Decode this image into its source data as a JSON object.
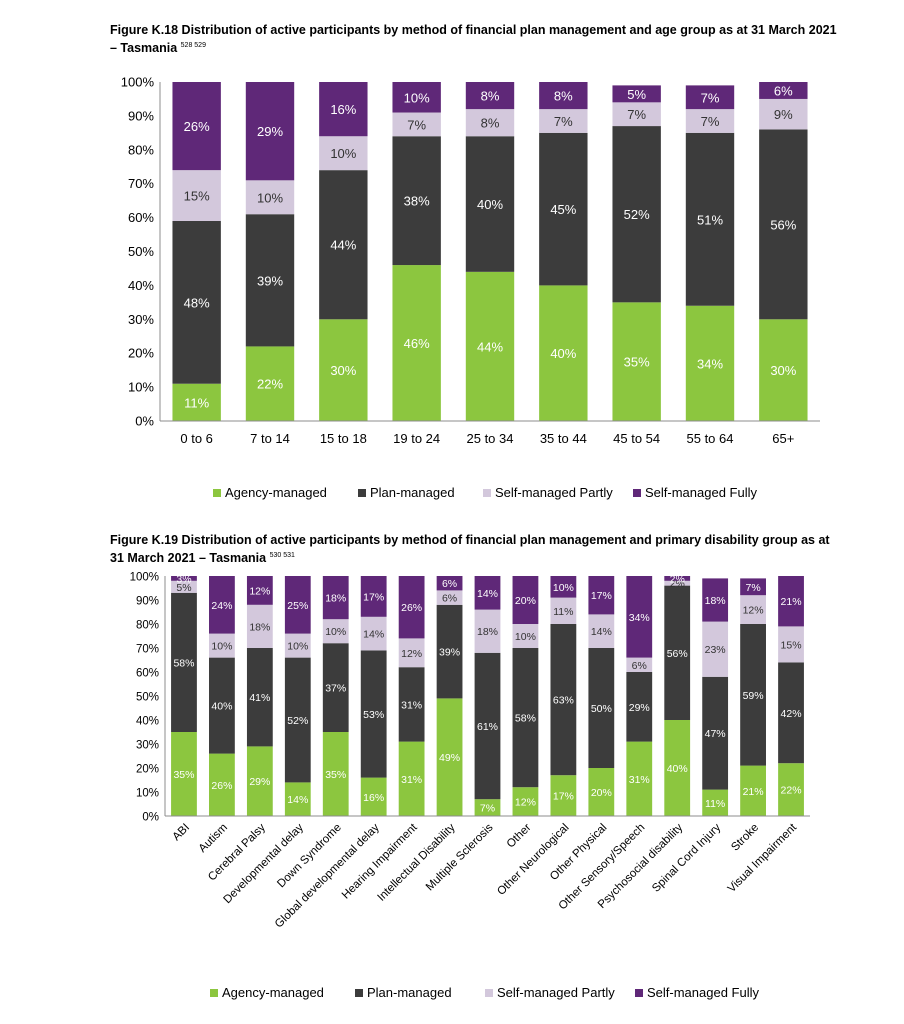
{
  "figures": [
    {
      "title": "Figure K.18 Distribution of active participants by method of financial plan management and age group as at 31 March 2021 – Tasmania",
      "footnotes": "528 529"
    },
    {
      "title": "Figure K.19 Distribution of active participants by method of financial plan management and primary disability group as at 31 March 2021 – Tasmania",
      "footnotes": "530 531"
    }
  ],
  "colors": {
    "Agency-managed": "#8cc63f",
    "Plan-managed": "#3c3c3c",
    "Self-managed Partly": "#d3c8dc",
    "Self-managed Fully": "#5f2878"
  },
  "chart_data": [
    {
      "type": "bar",
      "stacked": true,
      "ylim": [
        0,
        100
      ],
      "y_ticks": [
        "0%",
        "10%",
        "20%",
        "30%",
        "40%",
        "50%",
        "60%",
        "70%",
        "80%",
        "90%",
        "100%"
      ],
      "legend_position": "bottom",
      "grid": false,
      "categories": [
        "0 to 6",
        "7 to 14",
        "15 to 18",
        "19 to 24",
        "25 to 34",
        "35 to 44",
        "45 to 54",
        "55 to 64",
        "65+"
      ],
      "series": [
        {
          "name": "Agency-managed",
          "values": [
            11,
            22,
            30,
            46,
            44,
            40,
            35,
            34,
            30
          ],
          "labels": [
            "11%",
            "22%",
            "30%",
            "46%",
            "44%",
            "40%",
            "35%",
            "34%",
            "30%"
          ]
        },
        {
          "name": "Plan-managed",
          "values": [
            48,
            39,
            44,
            38,
            40,
            45,
            52,
            51,
            56
          ],
          "labels": [
            "48%",
            "39%",
            "44%",
            "38%",
            "40%",
            "45%",
            "52%",
            "51%",
            "56%"
          ]
        },
        {
          "name": "Self-managed Partly",
          "values": [
            15,
            10,
            10,
            7,
            8,
            7,
            7,
            7,
            9
          ],
          "labels": [
            "15%",
            "10%",
            "10%",
            "7%",
            "8%",
            "7%",
            "7%",
            "7%",
            "9%"
          ]
        },
        {
          "name": "Self-managed Fully",
          "values": [
            26,
            29,
            16,
            10,
            8,
            8,
            5,
            7,
            6
          ],
          "labels": [
            "26%",
            "29%",
            "16%",
            "10%",
            "8%",
            "8%",
            "5%",
            "7%",
            "6%"
          ]
        }
      ]
    },
    {
      "type": "bar",
      "stacked": true,
      "ylim": [
        0,
        100
      ],
      "y_ticks": [
        "0%",
        "10%",
        "20%",
        "30%",
        "40%",
        "50%",
        "60%",
        "70%",
        "80%",
        "90%",
        "100%"
      ],
      "legend_position": "bottom",
      "grid": false,
      "categories": [
        "ABI",
        "Autism",
        "Cerebral Palsy",
        "Developmental delay",
        "Down Syndrome",
        "Global developmental delay",
        "Hearing Impairment",
        "Intellectual Disability",
        "Multiple Sclerosis",
        "Other",
        "Other Neurological",
        "Other Physical",
        "Other Sensory/Speech",
        "Psychosocial disability",
        "Spinal Cord Injury",
        "Stroke",
        "Visual Impairment"
      ],
      "series": [
        {
          "name": "Agency-managed",
          "values": [
            35,
            26,
            29,
            14,
            35,
            16,
            31,
            49,
            7,
            12,
            17,
            20,
            31,
            40,
            11,
            21,
            22
          ],
          "labels": [
            "35%",
            "26%",
            "29%",
            "14%",
            "35%",
            "16%",
            "31%",
            "49%",
            "7%",
            "12%",
            "17%",
            "20%",
            "31%",
            "40%",
            "11%",
            "21%",
            "22%"
          ]
        },
        {
          "name": "Plan-managed",
          "values": [
            58,
            40,
            41,
            52,
            37,
            53,
            31,
            39,
            61,
            58,
            63,
            50,
            29,
            56,
            47,
            59,
            42
          ],
          "labels": [
            "58%",
            "40%",
            "41%",
            "52%",
            "37%",
            "53%",
            "31%",
            "39%",
            "61%",
            "58%",
            "63%",
            "50%",
            "29%",
            "56%",
            "47%",
            "59%",
            "42%"
          ]
        },
        {
          "name": "Self-managed Partly",
          "values": [
            5,
            10,
            18,
            10,
            10,
            14,
            12,
            6,
            18,
            10,
            11,
            14,
            6,
            2,
            23,
            12,
            15
          ],
          "labels": [
            "5%",
            "10%",
            "18%",
            "10%",
            "10%",
            "14%",
            "12%",
            "6%",
            "18%",
            "10%",
            "11%",
            "14%",
            "6%",
            "2%",
            "23%",
            "12%",
            "15%"
          ]
        },
        {
          "name": "Self-managed Fully",
          "values": [
            3,
            24,
            12,
            25,
            18,
            17,
            26,
            6,
            14,
            20,
            10,
            17,
            34,
            2,
            18,
            7,
            21
          ],
          "labels": [
            "3%",
            "24%",
            "12%",
            "25%",
            "18%",
            "17%",
            "26%",
            "6%",
            "14%",
            "20%",
            "10%",
            "17%",
            "34%",
            "2%",
            "18%",
            "7%",
            "21%"
          ]
        }
      ]
    }
  ]
}
